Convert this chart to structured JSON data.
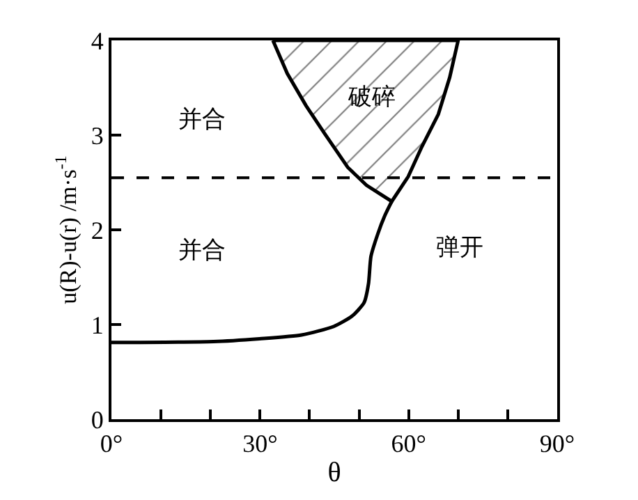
{
  "chart_data": {
    "type": "line",
    "xlabel": "θ",
    "ylabel": "u(R)-u(r) /m·s$^{-1}$",
    "xlim": [
      0,
      90
    ],
    "ylim": [
      0,
      4
    ],
    "xticks": [
      {
        "value": 0,
        "label": "0°"
      },
      {
        "value": 10,
        "label": null
      },
      {
        "value": 20,
        "label": null
      },
      {
        "value": 30,
        "label": "30°"
      },
      {
        "value": 40,
        "label": null
      },
      {
        "value": 50,
        "label": null
      },
      {
        "value": 60,
        "label": "60°"
      },
      {
        "value": 70,
        "label": null
      },
      {
        "value": 80,
        "label": null
      },
      {
        "value": 90,
        "label": "90°"
      }
    ],
    "yticks": [
      0,
      1,
      2,
      3,
      4
    ],
    "series": [
      {
        "color": "#000000",
        "x": [
          0,
          20.6,
          29.9,
          38.4,
          44.9,
          48.6,
          51,
          51.9,
          52.4,
          53.8,
          55.2,
          56.6
        ],
        "values": [
          0.81,
          0.82,
          0.85,
          0.89,
          0.98,
          1.09,
          1.23,
          1.43,
          1.72,
          1.96,
          2.15,
          2.3
        ]
      },
      {
        "type": "area",
        "color": "#000000",
        "x": [
          32.6,
          35.5,
          39.3,
          43,
          47.7,
          51.5,
          56.6,
          59.9,
          62.7,
          66,
          68.3,
          70,
          32.6
        ],
        "values": [
          4,
          3.65,
          3.31,
          3.02,
          2.66,
          2.47,
          2.3,
          2.56,
          2.88,
          3.22,
          3.61,
          4,
          4
        ]
      }
    ],
    "ref_lines": [
      {
        "axis": "y",
        "value": 2.55,
        "color": "#000000",
        "line_style": "dashed"
      }
    ],
    "annotations": [
      "并合",
      "并合",
      "破碎",
      "弹开"
    ],
    "marker": "none",
    "line_style": "solid"
  }
}
